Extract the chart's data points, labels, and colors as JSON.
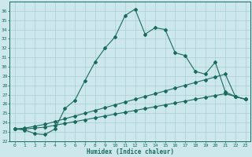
{
  "title": "",
  "xlabel": "Humidex (Indice chaleur)",
  "xlim": [
    -0.5,
    23.5
  ],
  "ylim": [
    22,
    37
  ],
  "xticks": [
    0,
    1,
    2,
    3,
    4,
    5,
    6,
    7,
    8,
    9,
    10,
    11,
    12,
    13,
    14,
    15,
    16,
    17,
    18,
    19,
    20,
    21,
    22,
    23
  ],
  "yticks": [
    22,
    23,
    24,
    25,
    26,
    27,
    28,
    29,
    30,
    31,
    32,
    33,
    34,
    35,
    36
  ],
  "bg_color": "#cde8ec",
  "line_color": "#1a6b5c",
  "grid_color": "#a8cdd4",
  "line1_x": [
    0,
    1,
    2,
    3,
    4,
    5,
    6,
    7,
    8,
    9,
    10,
    11,
    12,
    13,
    14,
    15,
    16,
    17,
    18,
    19,
    20,
    21,
    22,
    23
  ],
  "line1_y": [
    23.3,
    23.2,
    22.8,
    22.7,
    23.3,
    25.5,
    26.4,
    28.5,
    30.5,
    32.0,
    33.2,
    35.5,
    36.2,
    33.5,
    34.2,
    34.0,
    31.5,
    31.2,
    29.5,
    29.2,
    30.5,
    27.3,
    26.8,
    26.5
  ],
  "line2_x": [
    0,
    1,
    2,
    3,
    4,
    5,
    6,
    7,
    8,
    9,
    10,
    11,
    12,
    13,
    14,
    15,
    16,
    17,
    18,
    19,
    20,
    21,
    22,
    23
  ],
  "line2_y": [
    23.3,
    23.4,
    23.6,
    23.8,
    24.1,
    24.4,
    24.7,
    25.0,
    25.3,
    25.6,
    25.9,
    26.2,
    26.5,
    26.8,
    27.1,
    27.4,
    27.7,
    28.0,
    28.3,
    28.6,
    28.9,
    29.2,
    26.8,
    26.5
  ],
  "line3_x": [
    0,
    1,
    2,
    3,
    4,
    5,
    6,
    7,
    8,
    9,
    10,
    11,
    12,
    13,
    14,
    15,
    16,
    17,
    18,
    19,
    20,
    21,
    22,
    23
  ],
  "line3_y": [
    23.3,
    23.3,
    23.4,
    23.5,
    23.7,
    23.9,
    24.1,
    24.3,
    24.5,
    24.7,
    24.9,
    25.1,
    25.3,
    25.5,
    25.7,
    25.9,
    26.1,
    26.3,
    26.5,
    26.7,
    26.9,
    27.1,
    26.8,
    26.5
  ]
}
